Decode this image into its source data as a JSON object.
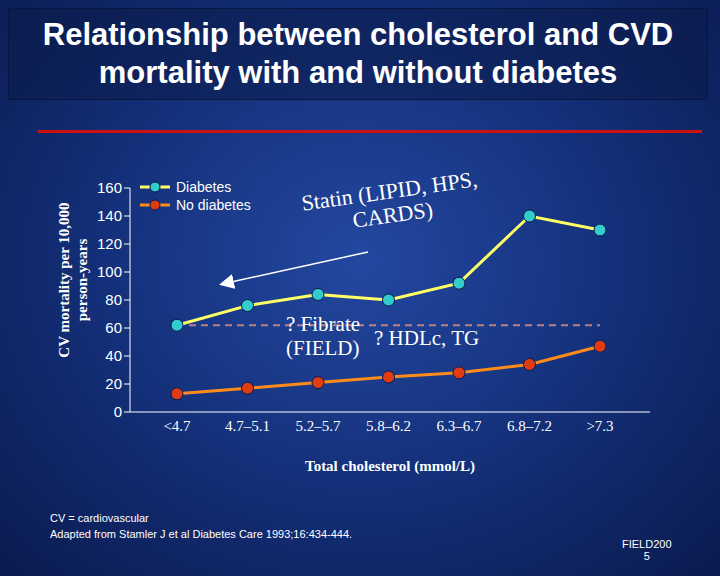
{
  "chart_data": {
    "type": "line",
    "title": "Relationship between cholesterol and CVD mortality with and without diabetes",
    "x_label": "Total cholesterol (mmol/L)",
    "y_label": "CV mortality per 10,000 person-years",
    "categories": [
      "<4.7",
      "4.7–5.1",
      "5.2–5.7",
      "5.8–6.2",
      "6.3–6.7",
      "6.8–7.2",
      ">7.3"
    ],
    "series": [
      {
        "name": "Diabetes",
        "color": "#ffff66",
        "marker": "circle",
        "values": [
          62,
          76,
          84,
          80,
          92,
          140,
          130
        ]
      },
      {
        "name": "No diabetes",
        "color": "#ff8c1a",
        "marker": "circle",
        "values": [
          13,
          17,
          21,
          25,
          28,
          34,
          47
        ]
      }
    ],
    "ylim": [
      0,
      160
    ],
    "yticks": [
      0,
      20,
      40,
      60,
      80,
      100,
      120,
      140,
      160
    ],
    "reference_line": {
      "y": 62,
      "color": "#c08080",
      "line_style": "dashed"
    },
    "annotations": [
      {
        "lines": [
          "Statin (LIPID, HPS,",
          "CARDS)"
        ]
      },
      {
        "lines": [
          "? Fibrate",
          "(FIELD)"
        ]
      },
      {
        "lines": [
          "? HDLc, TG"
        ]
      }
    ],
    "footnotes": [
      "CV = cardiovascular",
      "Adapted from Stamler J et al Diabetes Care 1993;16:434-444."
    ],
    "footer": [
      "FIELD200",
      "5"
    ],
    "legend": "top-left",
    "grid": false
  }
}
